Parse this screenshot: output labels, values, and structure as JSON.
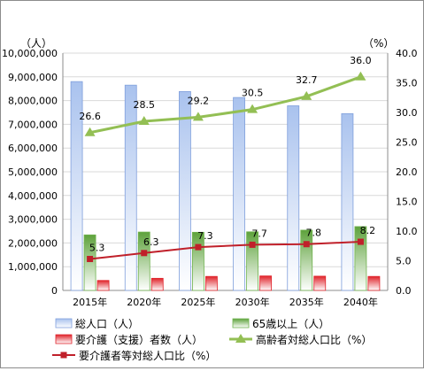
{
  "chart_data": {
    "type": "bar",
    "categories": [
      "2015年",
      "2020年",
      "2025年",
      "2030年",
      "2035年",
      "2040年"
    ],
    "y_left": {
      "unit": "（人）",
      "range": [
        0,
        10000000
      ],
      "ticks": [
        "0",
        "1,000,000",
        "2,000,000",
        "3,000,000",
        "4,000,000",
        "5,000,000",
        "6,000,000",
        "7,000,000",
        "8,000,000",
        "9,000,000",
        "10,000,000"
      ]
    },
    "y_right": {
      "unit": "（%）",
      "range": [
        0,
        40
      ],
      "ticks": [
        "0.0",
        "5.0",
        "10.0",
        "15.0",
        "20.0",
        "25.0",
        "30.0",
        "35.0",
        "40.0"
      ]
    },
    "bar_series": [
      {
        "name": "総人口（人）",
        "values": [
          8800000,
          8650000,
          8380000,
          8130000,
          7780000,
          7450000
        ]
      },
      {
        "name": "65歳以上（人）",
        "values": [
          2340000,
          2460000,
          2450000,
          2470000,
          2540000,
          2690000
        ]
      },
      {
        "name": "要介護（支援）者数（人）",
        "values": [
          420000,
          510000,
          590000,
          610000,
          600000,
          590000
        ]
      }
    ],
    "line_series": [
      {
        "name": "高齢者対総人口比（%）",
        "values": [
          26.6,
          28.5,
          29.2,
          30.5,
          32.7,
          36.0
        ],
        "labels": [
          "26.6",
          "28.5",
          "29.2",
          "30.5",
          "32.7",
          "36.0"
        ]
      },
      {
        "name": "要介護者等対総人口比（%）",
        "values": [
          5.3,
          6.3,
          7.3,
          7.7,
          7.8,
          8.2
        ],
        "labels": [
          "5.3",
          "6.3",
          "7.3",
          "7.7",
          "7.8",
          "8.2"
        ]
      }
    ],
    "grid": true,
    "legend_position": "bottom",
    "colors": {
      "total": "#7f9fdc",
      "elderly": "#6fb24e",
      "care": "#e0242b",
      "elderly_ratio": "#93bf54",
      "care_ratio": "#c0202a"
    }
  }
}
